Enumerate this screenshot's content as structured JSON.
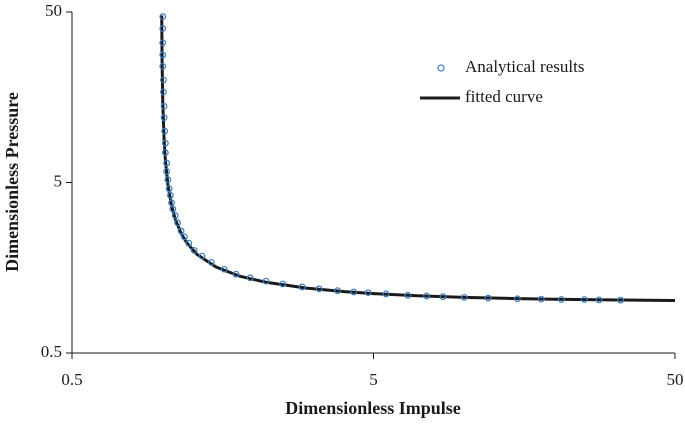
{
  "chart_data": {
    "type": "scatter",
    "x_label": "Dimensionless Impulse",
    "y_label": "Dimensionless Pressure",
    "xscale": "log",
    "yscale": "log",
    "xlim": [
      0.5,
      50
    ],
    "ylim": [
      0.5,
      50
    ],
    "xticks": [
      0.5,
      5,
      50
    ],
    "yticks": [
      0.5,
      5,
      50
    ],
    "legend": "upper right",
    "series": [
      {
        "name": "Analytical results",
        "color": "#3a7cc3",
        "type": "scatter",
        "x": [
          1.0,
          1.0,
          1.0,
          1.0,
          1.0,
          1.005,
          1.005,
          1.01,
          1.01,
          1.015,
          1.02,
          1.02,
          1.03,
          1.03,
          1.04,
          1.05,
          1.06,
          1.07,
          1.08,
          1.1,
          1.12,
          1.15,
          1.18,
          1.22,
          1.27,
          1.35,
          1.45,
          1.6,
          1.75,
          1.95,
          2.2,
          2.5,
          2.9,
          3.3,
          3.8,
          4.3,
          4.8,
          5.5,
          6.5,
          7.5,
          8.5,
          10,
          12,
          15,
          18,
          21,
          25,
          28,
          33
        ],
        "values": [
          47,
          40,
          33,
          28,
          24,
          20,
          17,
          14,
          12,
          10,
          8.5,
          7.5,
          6.5,
          5.8,
          5.2,
          4.6,
          4.2,
          3.8,
          3.5,
          3.2,
          2.9,
          2.6,
          2.4,
          2.2,
          2.0,
          1.85,
          1.7,
          1.55,
          1.45,
          1.38,
          1.32,
          1.27,
          1.22,
          1.19,
          1.16,
          1.14,
          1.13,
          1.11,
          1.09,
          1.08,
          1.07,
          1.06,
          1.05,
          1.04,
          1.035,
          1.03,
          1.03,
          1.025,
          1.02
        ]
      },
      {
        "name": "fitted curve",
        "color": "#1a1a1a",
        "type": "line",
        "x": [
          0.9922,
          0.995,
          1.0,
          1.01,
          1.02,
          1.04,
          1.07,
          1.1,
          1.15,
          1.2,
          1.3,
          1.5,
          1.8,
          2.2,
          3,
          4,
          5,
          7,
          10,
          15,
          20,
          30,
          40,
          50
        ],
        "values": [
          47.8,
          25.3,
          14.9,
          9.01,
          6.79,
          4.85,
          3.64,
          3.05,
          2.52,
          2.22,
          1.89,
          1.6,
          1.41,
          1.3,
          1.2,
          1.145,
          1.115,
          1.083,
          1.06,
          1.042,
          1.033,
          1.024,
          1.019,
          1.016
        ]
      }
    ]
  }
}
